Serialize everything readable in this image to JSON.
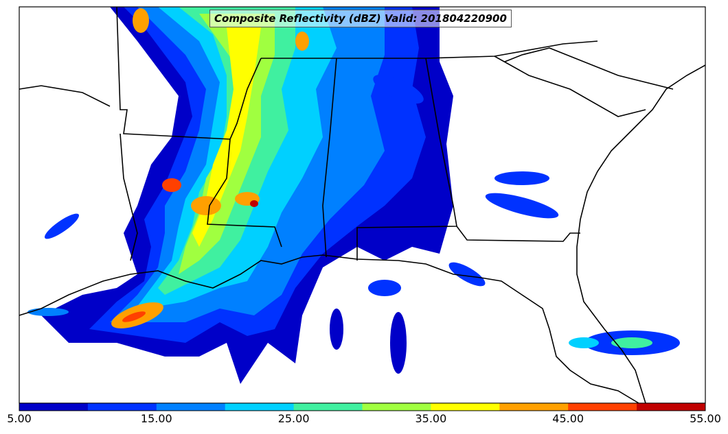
{
  "title": "Composite Reflectivity (dBZ) Valid: 201804220900",
  "colorbar": {
    "ticks": [
      "5.00",
      "15.00",
      "25.00",
      "35.00",
      "45.00",
      "55.00"
    ],
    "colors": [
      "#0000c8",
      "#0032ff",
      "#0080ff",
      "#00d0ff",
      "#40f0a0",
      "#a0ff40",
      "#ffff00",
      "#ffa000",
      "#ff4000",
      "#c00000"
    ]
  },
  "map": {
    "background": "#ffffff",
    "border_color": "#000000"
  }
}
